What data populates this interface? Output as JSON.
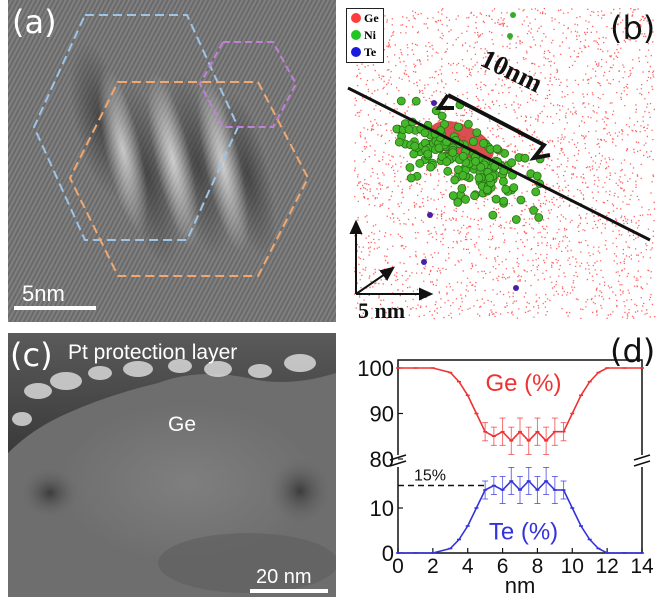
{
  "figure": {
    "panel_a": {
      "label": "(a)",
      "scalebar": "5nm"
    },
    "panel_b": {
      "label": "(b)",
      "legend": [
        {
          "name": "Ge",
          "color": "#ff3b3b"
        },
        {
          "name": "Ni",
          "color": "#22c522"
        },
        {
          "name": "Te",
          "color": "#1a1adf"
        }
      ],
      "size_label": "10nm",
      "scalebar": "5 nm"
    },
    "panel_c": {
      "label": "(c)",
      "top_text": "Pt protection layer",
      "region_text": "Ge",
      "scalebar": "20 nm"
    },
    "panel_d": {
      "label": "(d)",
      "ge_label": "Ge (%)",
      "te_label": "Te (%)",
      "ref_label": "15%"
    }
  },
  "chart_data": {
    "type": "line",
    "xlabel": "nm",
    "xlim": [
      0,
      14
    ],
    "x_ticks": [
      0,
      2,
      4,
      6,
      8,
      10,
      12,
      14
    ],
    "y_upper_ticks": [
      80,
      90,
      100
    ],
    "y_lower_ticks": [
      0,
      10
    ],
    "reference_line": {
      "y": 15,
      "label": "15%"
    },
    "series": [
      {
        "name": "Ge (%)",
        "color": "#ee3333",
        "x": [
          0,
          1,
          2,
          3,
          3.5,
          4,
          4.5,
          5,
          5.5,
          6,
          6.5,
          7,
          7.5,
          8,
          8.5,
          9,
          9.5,
          10,
          10.5,
          11,
          11.5,
          12,
          13,
          14
        ],
        "values": [
          100,
          100,
          100,
          99,
          97,
          94,
          90,
          86,
          85,
          86,
          84,
          86,
          84,
          86,
          84,
          86,
          86,
          90,
          94,
          97,
          99,
          100,
          100,
          100
        ],
        "errors": [
          0,
          0,
          0,
          0,
          0,
          0,
          0,
          2,
          2,
          3,
          3,
          3,
          3,
          3,
          3,
          3,
          2,
          0,
          0,
          0,
          0,
          0,
          0,
          0
        ]
      },
      {
        "name": "Te (%)",
        "color": "#3333dd",
        "x": [
          0,
          1,
          2,
          3,
          3.5,
          4,
          4.5,
          5,
          5.5,
          6,
          6.5,
          7,
          7.5,
          8,
          8.5,
          9,
          9.5,
          10,
          10.5,
          11,
          11.5,
          12,
          13,
          14
        ],
        "values": [
          0,
          0,
          0,
          1,
          3,
          6,
          10,
          14,
          15,
          14,
          16,
          14,
          16,
          14,
          16,
          14,
          14,
          10,
          6,
          3,
          1,
          0,
          0,
          0
        ],
        "errors": [
          0,
          0,
          0,
          0,
          0,
          0,
          0,
          2,
          2,
          3,
          3,
          3,
          3,
          3,
          3,
          3,
          2,
          0,
          0,
          0,
          0,
          0,
          0,
          0
        ]
      }
    ]
  }
}
